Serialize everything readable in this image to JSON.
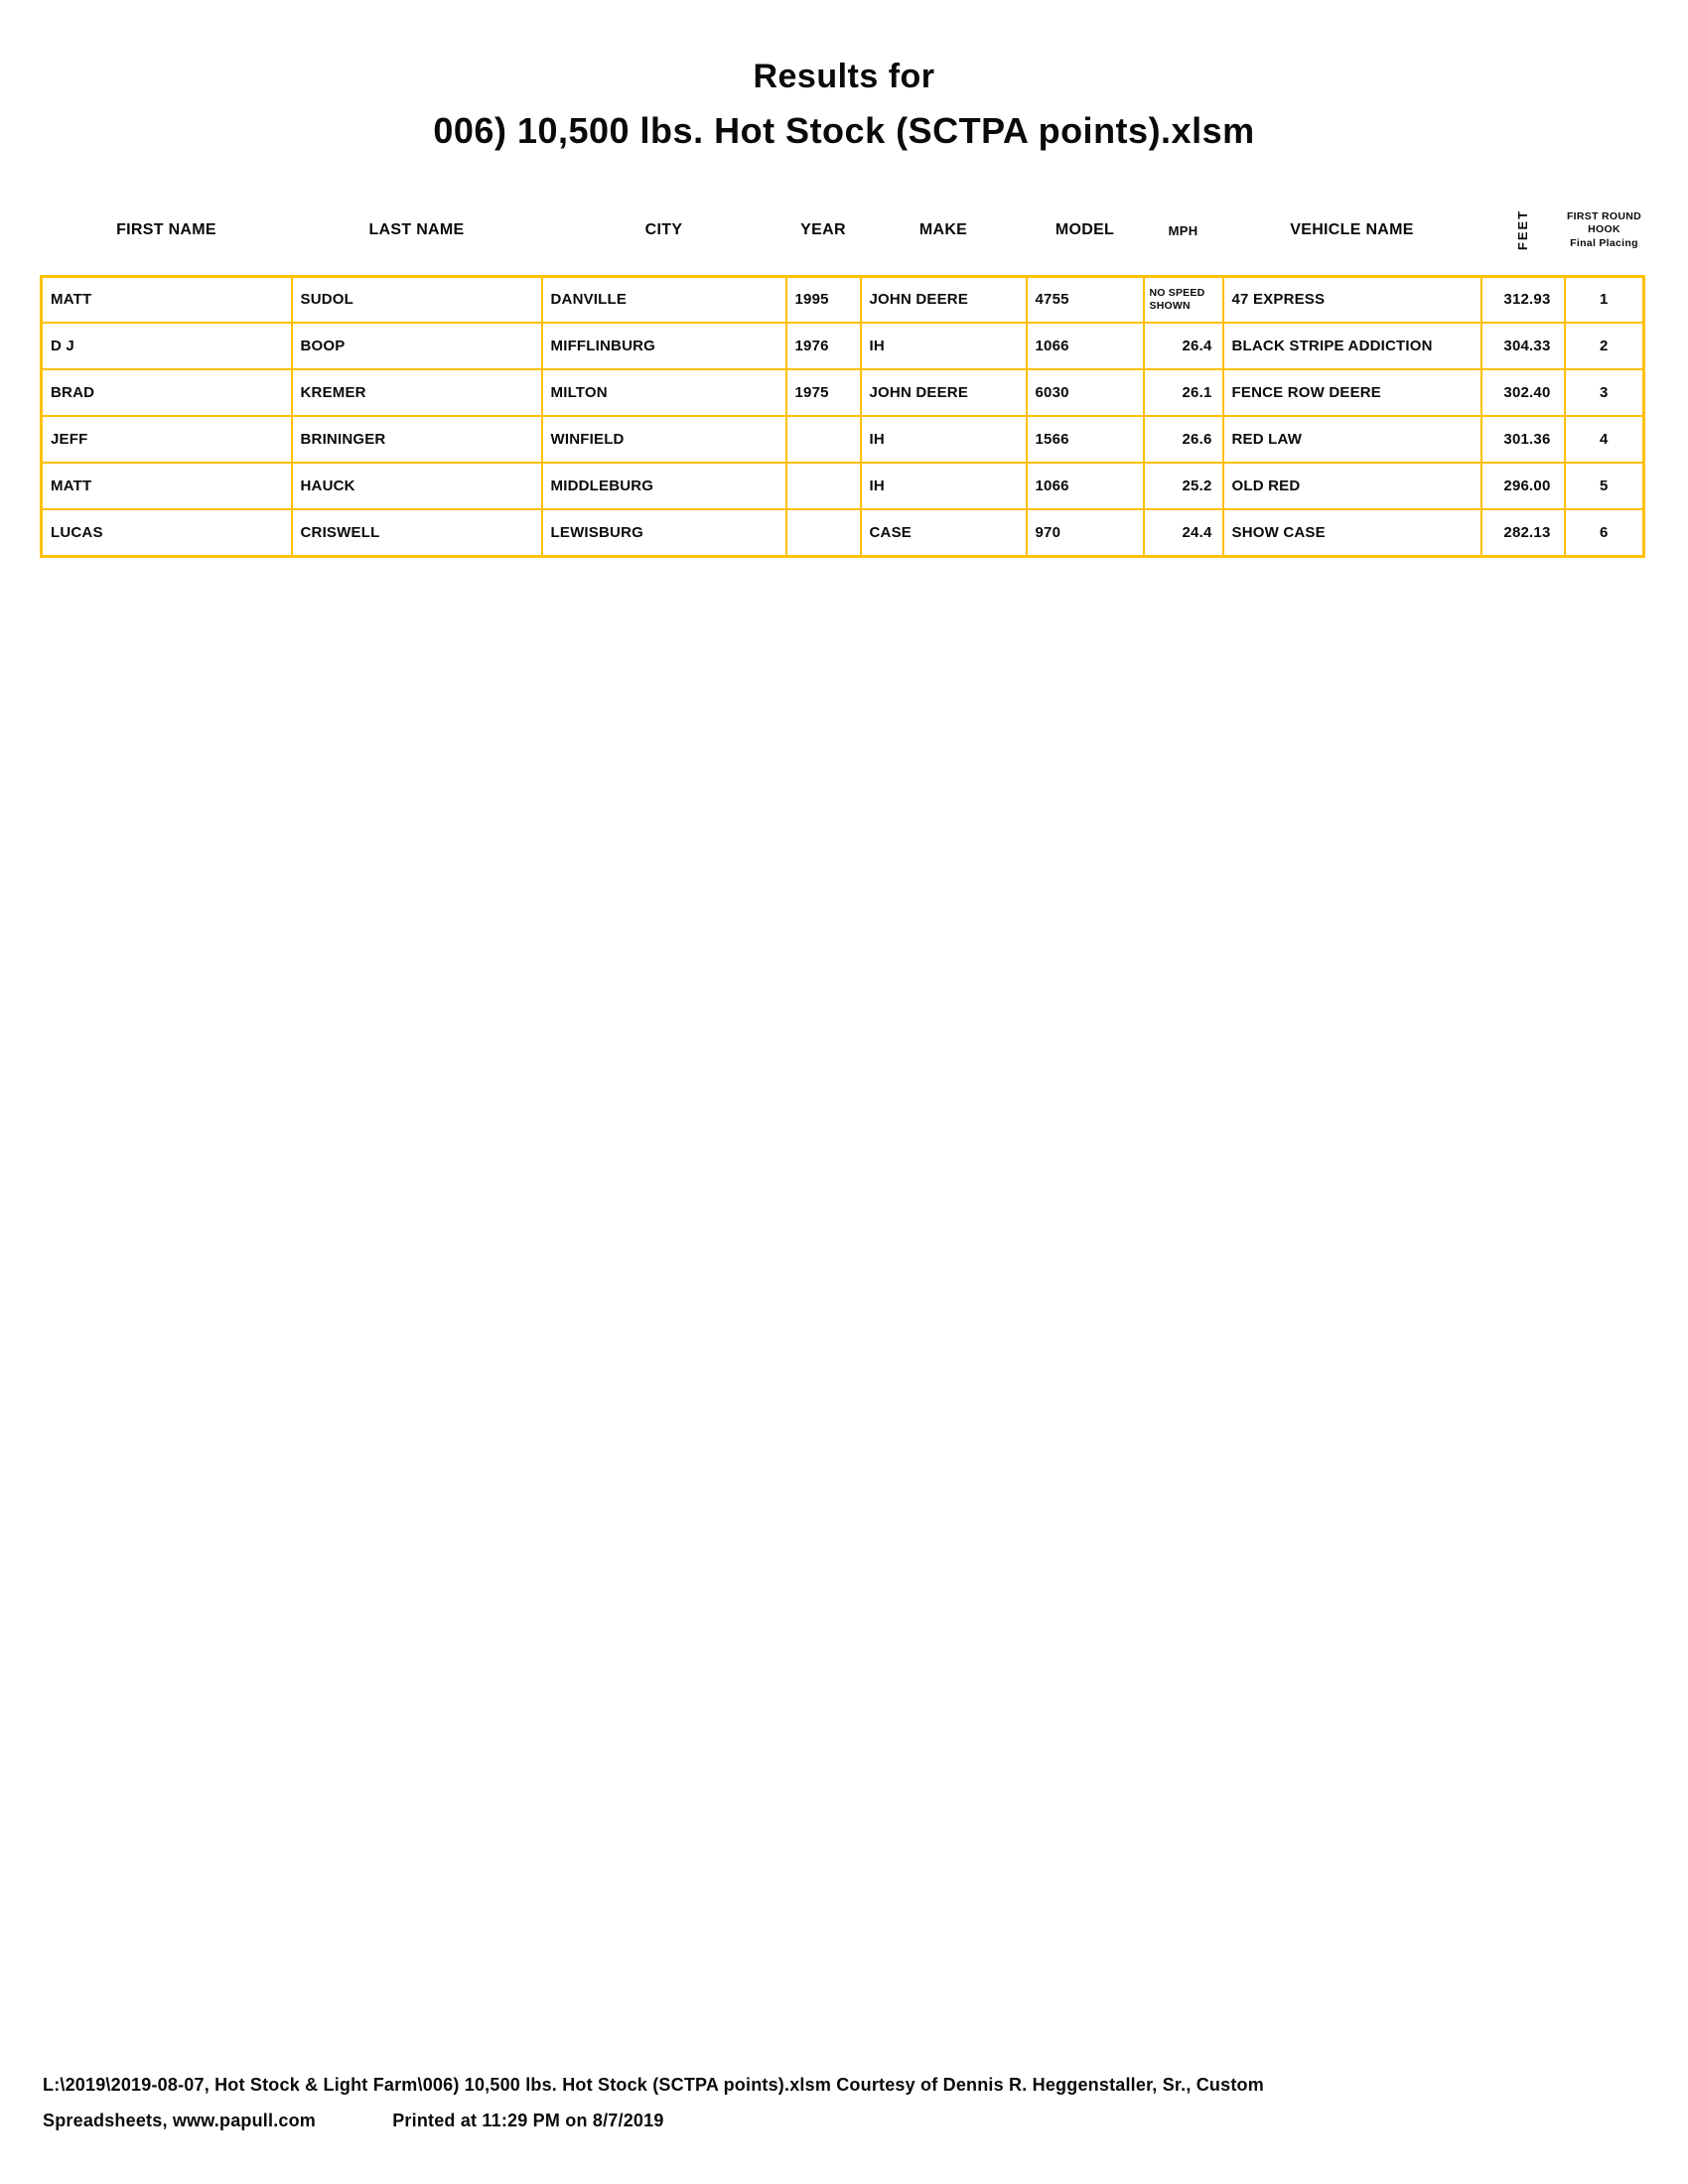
{
  "colors": {
    "grid": "#FFC000",
    "text": "#0a0a0a",
    "background": "#ffffff"
  },
  "title": {
    "line1": "Results for",
    "line2": "006) 10,500 lbs. Hot Stock (SCTPA points).xlsm"
  },
  "table": {
    "columns": [
      {
        "key": "first_name",
        "label": "FIRST NAME"
      },
      {
        "key": "last_name",
        "label": "LAST NAME"
      },
      {
        "key": "city",
        "label": "CITY"
      },
      {
        "key": "year",
        "label": "YEAR"
      },
      {
        "key": "make",
        "label": "MAKE"
      },
      {
        "key": "model",
        "label": "MODEL"
      },
      {
        "key": "mph",
        "label": "MPH"
      },
      {
        "key": "vehicle_name",
        "label": "VEHICLE NAME"
      },
      {
        "key": "feet",
        "label": "FEET"
      },
      {
        "key": "placing",
        "label": "FIRST ROUND HOOK",
        "sublabel": "Final Placing"
      }
    ],
    "rows": [
      {
        "first_name": "MATT",
        "last_name": "SUDOL",
        "city": "DANVILLE",
        "year": "1995",
        "make": "JOHN DEERE",
        "model": "4755",
        "mph": "NO SPEED SHOWN",
        "no_speed": true,
        "vehicle_name": "47 EXPRESS",
        "feet": "312.93",
        "placing": "1"
      },
      {
        "first_name": "D J",
        "last_name": "BOOP",
        "city": "MIFFLINBURG",
        "year": "1976",
        "make": "IH",
        "model": "1066",
        "mph": "26.4",
        "vehicle_name": "BLACK STRIPE ADDICTION",
        "feet": "304.33",
        "placing": "2"
      },
      {
        "first_name": "BRAD",
        "last_name": "KREMER",
        "city": "MILTON",
        "year": "1975",
        "make": "JOHN DEERE",
        "model": "6030",
        "mph": "26.1",
        "vehicle_name": "FENCE ROW DEERE",
        "feet": "302.40",
        "placing": "3"
      },
      {
        "first_name": "JEFF",
        "last_name": "BRININGER",
        "city": "WINFIELD",
        "year": "",
        "make": "IH",
        "model": "1566",
        "mph": "26.6",
        "vehicle_name": "RED LAW",
        "feet": "301.36",
        "placing": "4"
      },
      {
        "first_name": "MATT",
        "last_name": "HAUCK",
        "city": "MIDDLEBURG",
        "year": "",
        "make": "IH",
        "model": "1066",
        "mph": "25.2",
        "vehicle_name": "OLD RED",
        "feet": "296.00",
        "placing": "5"
      },
      {
        "first_name": "LUCAS",
        "last_name": "CRISWELL",
        "city": "LEWISBURG",
        "year": "",
        "make": "CASE",
        "model": "970",
        "mph": "24.4",
        "vehicle_name": "SHOW CASE",
        "feet": "282.13",
        "placing": "6"
      }
    ]
  },
  "footer": {
    "line1": "L:\\2019\\2019-08-07, Hot Stock & Light Farm\\006) 10,500 lbs. Hot Stock (SCTPA points).xlsm  Courtesy of Dennis R. Heggenstaller, Sr., Custom",
    "line2_left": "Spreadsheets, www.papull.com",
    "line2_right": "Printed at 11:29 PM on 8/7/2019"
  }
}
